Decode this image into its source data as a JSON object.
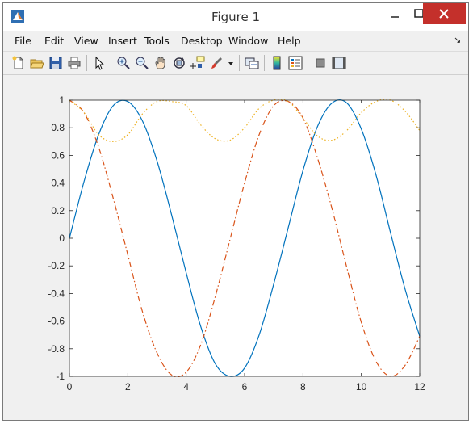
{
  "window": {
    "title": "Figure 1"
  },
  "menu": [
    "File",
    "Edit",
    "View",
    "Insert",
    "Tools",
    "Desktop",
    "Window",
    "Help"
  ],
  "toolbar_icons": [
    "new-figure-icon",
    "open-file-icon",
    "save-icon",
    "print-icon",
    "select-arrow-icon",
    "zoom-in-icon",
    "zoom-out-icon",
    "pan-hand-icon",
    "rotate-3d-icon",
    "data-cursor-icon",
    "brush-icon",
    "brush-dropdown-icon",
    "link-plot-icon",
    "colorbar-icon",
    "legend-icon",
    "hide-plot-tools-icon",
    "show-plot-tools-icon"
  ],
  "colors": {
    "series1": "#0072bd",
    "series2": "#d95319",
    "series3": "#edb120",
    "close_button": "#c4302b"
  },
  "chart_data": {
    "type": "line",
    "xlim": [
      0,
      12
    ],
    "ylim": [
      -1,
      1
    ],
    "xticks": [
      "0",
      "2",
      "4",
      "6",
      "8",
      "10",
      "12"
    ],
    "yticks": [
      "1",
      "0.8",
      "0.6",
      "0.4",
      "0.2",
      "0",
      "-0.2",
      "-0.4",
      "-0.6",
      "-0.8",
      "-1"
    ],
    "grid": false,
    "legend": "none",
    "series": [
      {
        "style": "solid",
        "x": [
          0,
          0.5,
          1,
          1.5,
          2,
          2.5,
          3,
          3.5,
          4,
          4.5,
          5,
          5.5,
          6,
          6.5,
          7,
          7.5,
          8,
          8.5,
          9,
          9.5,
          10,
          10.5,
          11,
          11.5,
          12
        ],
        "y": [
          0,
          0.41,
          0.75,
          0.96,
          0.99,
          0.85,
          0.56,
          0.17,
          -0.25,
          -0.64,
          -0.91,
          -1.0,
          -0.94,
          -0.7,
          -0.33,
          0.08,
          0.49,
          0.81,
          0.98,
          0.98,
          0.79,
          0.46,
          0.04,
          -0.37,
          -0.71
        ]
      },
      {
        "style": "dash-dot",
        "x": [
          0,
          0.5,
          1,
          1.5,
          2,
          2.5,
          3,
          3.5,
          4,
          4.5,
          5,
          5.5,
          6,
          6.5,
          7,
          7.5,
          8,
          8.5,
          9,
          9.5,
          10,
          10.5,
          11,
          11.5,
          12
        ],
        "y": [
          1,
          0.91,
          0.66,
          0.29,
          -0.12,
          -0.53,
          -0.83,
          -0.99,
          -0.97,
          -0.77,
          -0.42,
          -0.01,
          0.4,
          0.75,
          0.96,
          0.99,
          0.87,
          0.58,
          0.21,
          -0.21,
          -0.61,
          -0.89,
          -1.0,
          -0.92,
          -0.71
        ]
      },
      {
        "style": "dotted",
        "x": [
          0,
          0.5,
          1,
          1.5,
          2,
          2.5,
          3,
          3.5,
          4,
          4.5,
          5,
          5.5,
          6,
          6.5,
          7,
          7.5,
          8,
          8.5,
          9,
          9.5,
          10,
          10.5,
          11,
          11.5,
          12
        ],
        "y": [
          1,
          0.91,
          0.75,
          0.7,
          0.75,
          0.9,
          0.99,
          0.99,
          0.96,
          0.82,
          0.72,
          0.71,
          0.8,
          0.94,
          1.0,
          0.99,
          0.87,
          0.74,
          0.71,
          0.78,
          0.91,
          0.99,
          1.0,
          0.92,
          0.78
        ]
      }
    ]
  }
}
